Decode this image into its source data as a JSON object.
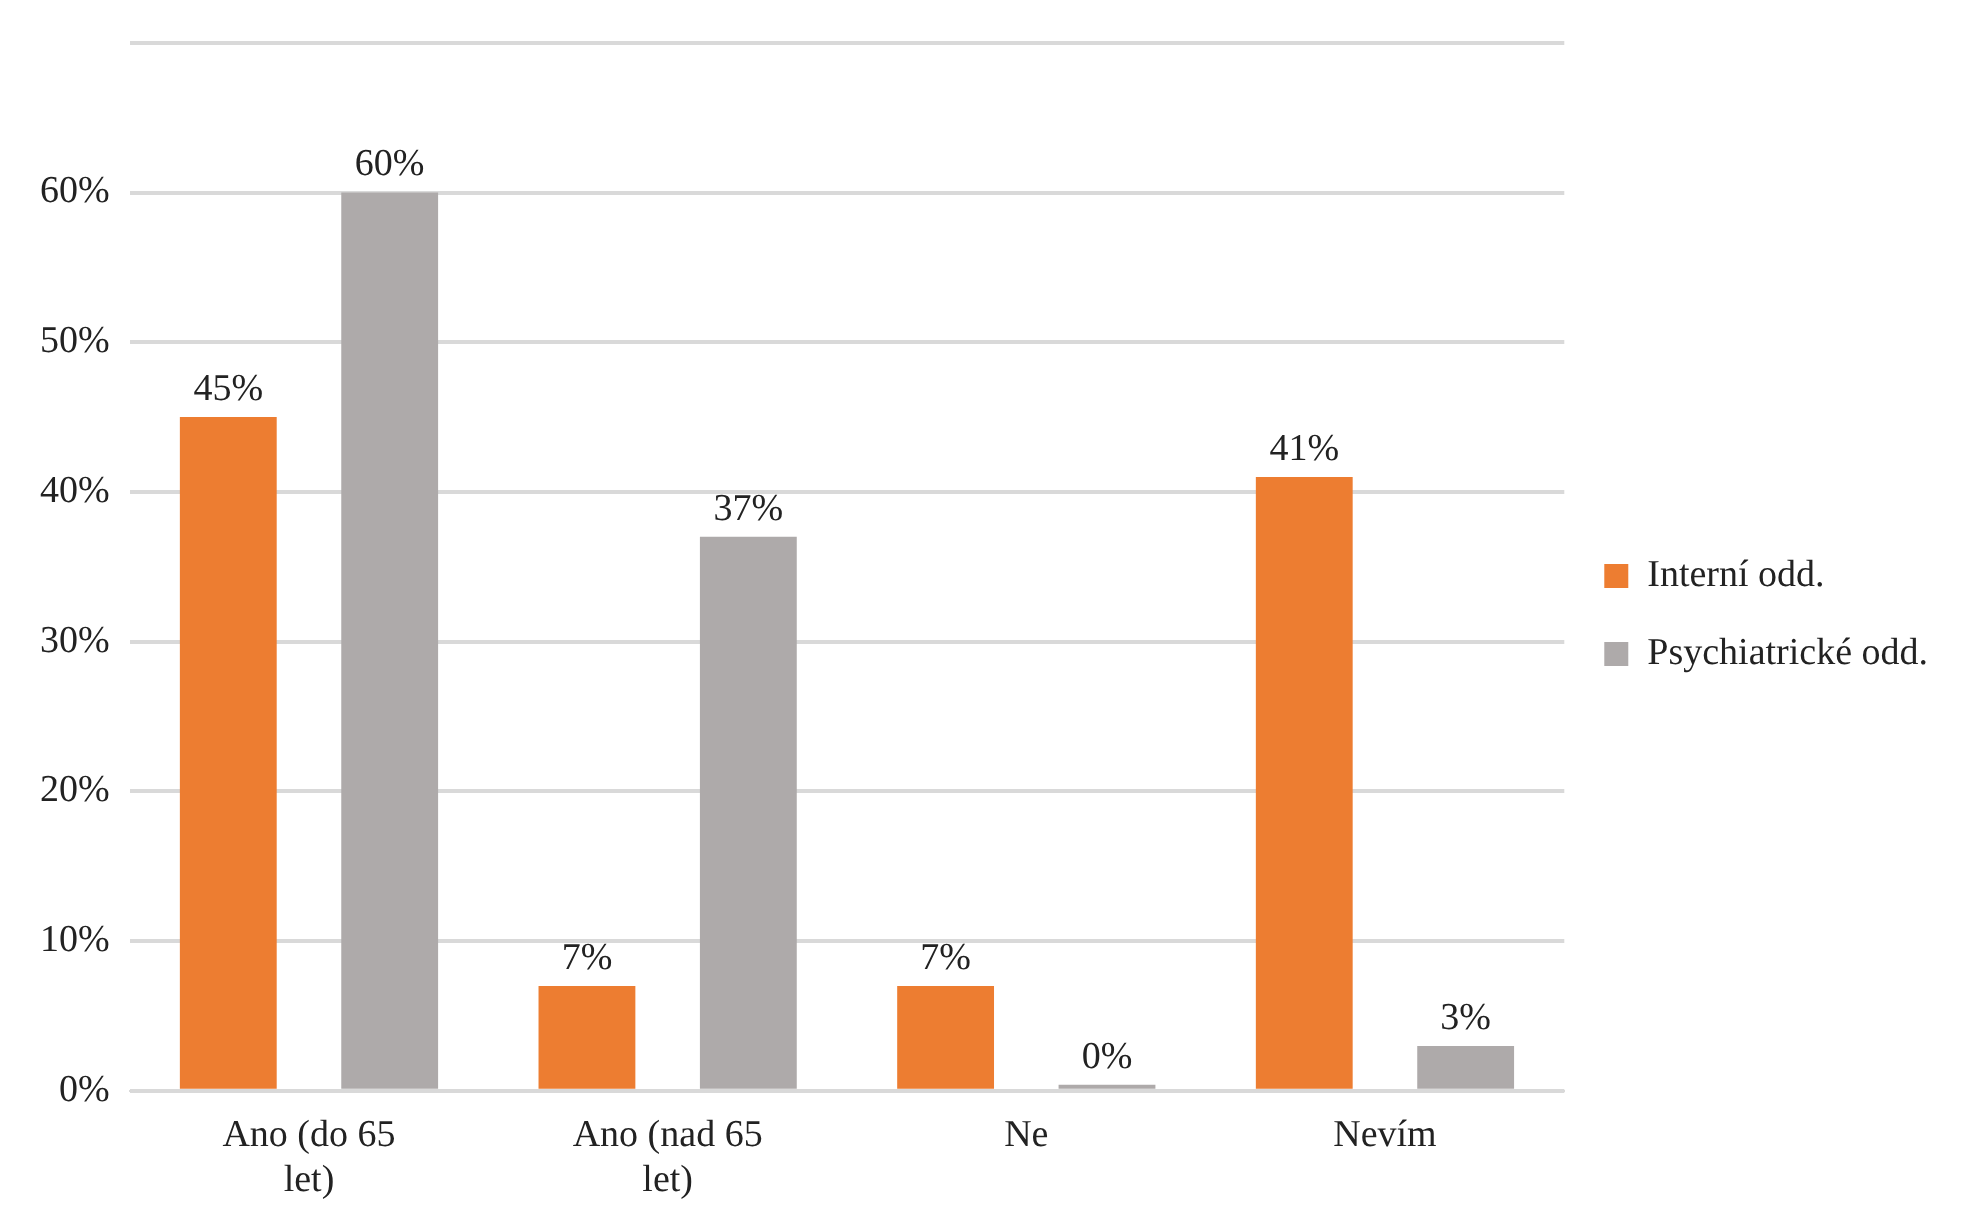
{
  "chart_data": {
    "type": "bar",
    "categories": [
      "Ano (do 65 let)",
      "Ano (nad 65 let)",
      "Ne",
      "Nevím"
    ],
    "series": [
      {
        "name": "Interní odd.",
        "color": "#ed7d31",
        "values": [
          45,
          7,
          7,
          41
        ],
        "value_labels": [
          "45%",
          "7%",
          "7%",
          "41%"
        ]
      },
      {
        "name": "Psychiatrické odd.",
        "color": "#aeaaaa",
        "values": [
          60,
          37,
          0,
          3
        ],
        "value_labels": [
          "60%",
          "37%",
          "0%",
          "3%"
        ]
      }
    ],
    "ylim": [
      0,
      70
    ],
    "yticks": [
      {
        "value": 0,
        "label": "0%"
      },
      {
        "value": 10,
        "label": "10%"
      },
      {
        "value": 20,
        "label": "20%"
      },
      {
        "value": 30,
        "label": "30%"
      },
      {
        "value": 40,
        "label": "40%"
      },
      {
        "value": 50,
        "label": "50%"
      },
      {
        "value": 60,
        "label": "60%"
      },
      {
        "value": 70,
        "label": null
      }
    ],
    "grid": "y",
    "legend": "right"
  }
}
